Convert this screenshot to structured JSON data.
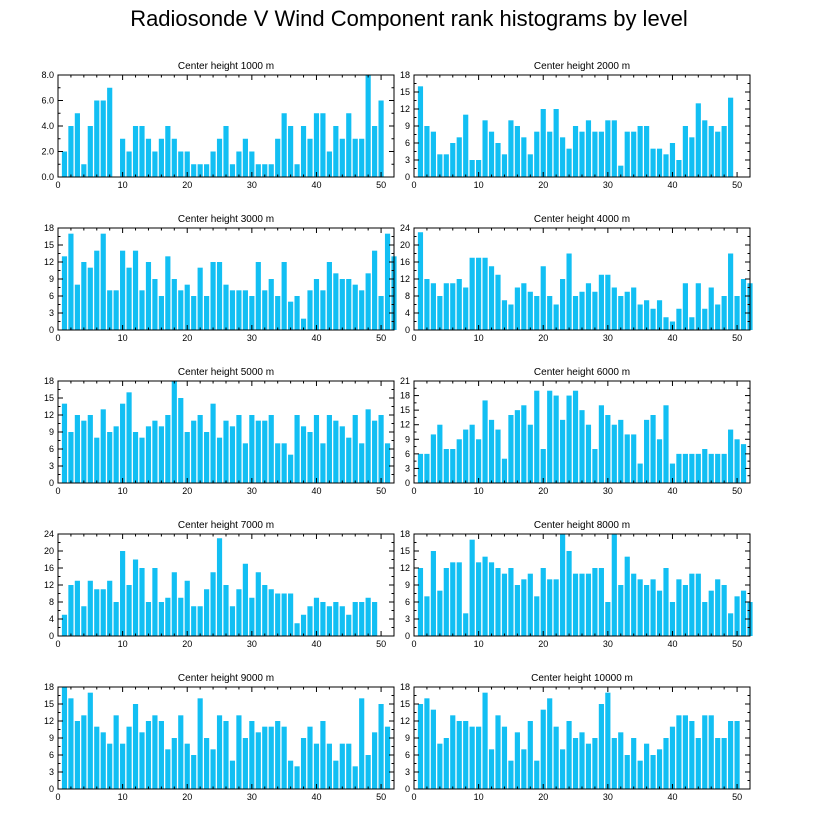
{
  "title": "Radiosonde V Wind Component rank histograms by level",
  "colors": {
    "bar": "#12BFF3",
    "axis": "#000000"
  },
  "chart_data": [
    {
      "type": "bar",
      "title": "Center height 1000 m",
      "xlim": [
        0,
        52
      ],
      "xticks": [
        0,
        10,
        20,
        30,
        40,
        50
      ],
      "ylim": [
        0,
        8
      ],
      "yticks": [
        "0.0",
        "2.0",
        "4.0",
        "6.0",
        "8.0"
      ],
      "ytick_values": [
        0,
        2,
        4,
        6,
        8
      ],
      "values": [
        2,
        4,
        5,
        1,
        4,
        6,
        6,
        7,
        0,
        3,
        2,
        4,
        4,
        3,
        2,
        3,
        4,
        3,
        2,
        2,
        1,
        1,
        1,
        2,
        3,
        4,
        1,
        2,
        3,
        2,
        1,
        1,
        1,
        3,
        5,
        4,
        1,
        4,
        3,
        5,
        5,
        2,
        4,
        3,
        5,
        3,
        3,
        8,
        4,
        6
      ]
    },
    {
      "type": "bar",
      "title": "Center height 2000 m",
      "xlim": [
        0,
        52
      ],
      "xticks": [
        0,
        10,
        20,
        30,
        40,
        50
      ],
      "ylim": [
        0,
        18
      ],
      "yticks": [
        "0",
        "3",
        "6",
        "9",
        "12",
        "15",
        "18"
      ],
      "ytick_values": [
        0,
        3,
        6,
        9,
        12,
        15,
        18
      ],
      "values": [
        16,
        9,
        8,
        4,
        4,
        6,
        7,
        11,
        3,
        3,
        10,
        8,
        6,
        4,
        10,
        9,
        7,
        4,
        8,
        12,
        8,
        12,
        7,
        5,
        9,
        8,
        10,
        8,
        8,
        10,
        10,
        2,
        8,
        8,
        9,
        9,
        5,
        5,
        4,
        6,
        3,
        9,
        7,
        13,
        10,
        9,
        8,
        9,
        14
      ]
    },
    {
      "type": "bar",
      "title": "Center height 3000 m",
      "xlim": [
        0,
        52
      ],
      "xticks": [
        0,
        10,
        20,
        30,
        40,
        50
      ],
      "ylim": [
        0,
        18
      ],
      "yticks": [
        "0",
        "3",
        "6",
        "9",
        "12",
        "15",
        "18"
      ],
      "ytick_values": [
        0,
        3,
        6,
        9,
        12,
        15,
        18
      ],
      "values": [
        13,
        17,
        8,
        12,
        11,
        14,
        17,
        7,
        7,
        14,
        11,
        14,
        7,
        12,
        9,
        6,
        13,
        9,
        7,
        8,
        6,
        11,
        6,
        12,
        12,
        8,
        7,
        7,
        7,
        6,
        12,
        7,
        9,
        6,
        12,
        5,
        6,
        2,
        7,
        9,
        7,
        12,
        10,
        9,
        9,
        8,
        7,
        10,
        14,
        6,
        17,
        13
      ]
    },
    {
      "type": "bar",
      "title": "Center height 4000 m",
      "xlim": [
        0,
        52
      ],
      "xticks": [
        0,
        10,
        20,
        30,
        40,
        50
      ],
      "ylim": [
        0,
        24
      ],
      "yticks": [
        "0",
        "4",
        "8",
        "12",
        "16",
        "20",
        "24"
      ],
      "ytick_values": [
        0,
        4,
        8,
        12,
        16,
        20,
        24
      ],
      "values": [
        23,
        12,
        11,
        8,
        11,
        11,
        12,
        10,
        17,
        17,
        17,
        15,
        13,
        7,
        6,
        10,
        11,
        9,
        8,
        15,
        8,
        6,
        12,
        18,
        8,
        9,
        11,
        9,
        13,
        13,
        10,
        8,
        9,
        10,
        6,
        7,
        5,
        7,
        3,
        2,
        5,
        11,
        3,
        11,
        5,
        10,
        6,
        8,
        18,
        8,
        12,
        11
      ]
    },
    {
      "type": "bar",
      "title": "Center height 5000 m",
      "xlim": [
        0,
        52
      ],
      "xticks": [
        0,
        10,
        20,
        30,
        40,
        50
      ],
      "ylim": [
        0,
        18
      ],
      "yticks": [
        "0",
        "3",
        "6",
        "9",
        "12",
        "15",
        "18"
      ],
      "ytick_values": [
        0,
        3,
        6,
        9,
        12,
        15,
        18
      ],
      "values": [
        14,
        9,
        12,
        11,
        12,
        8,
        13,
        9,
        10,
        14,
        16,
        9,
        8,
        10,
        11,
        10,
        12,
        18,
        15,
        9,
        11,
        12,
        9,
        14,
        8,
        11,
        10,
        12,
        7,
        12,
        11,
        11,
        12,
        7,
        7,
        5,
        12,
        10,
        9,
        12,
        7,
        12,
        11,
        10,
        8,
        12,
        7,
        13,
        11,
        12,
        7
      ]
    },
    {
      "type": "bar",
      "title": "Center height 6000 m",
      "xlim": [
        0,
        52
      ],
      "xticks": [
        0,
        10,
        20,
        30,
        40,
        50
      ],
      "ylim": [
        0,
        21
      ],
      "yticks": [
        "0",
        "3",
        "6",
        "9",
        "12",
        "15",
        "18",
        "21"
      ],
      "ytick_values": [
        0,
        3,
        6,
        9,
        12,
        15,
        18,
        21
      ],
      "values": [
        6,
        6,
        10,
        12,
        7,
        7,
        9,
        11,
        12,
        9,
        17,
        13,
        11,
        5,
        14,
        15,
        16,
        12,
        19,
        7,
        19,
        18,
        13,
        18,
        19,
        15,
        12,
        7,
        16,
        14,
        12,
        13,
        10,
        10,
        4,
        13,
        14,
        9,
        16,
        4,
        6,
        6,
        6,
        6,
        7,
        6,
        6,
        6,
        11,
        9,
        8
      ]
    },
    {
      "type": "bar",
      "title": "Center height 7000 m",
      "xlim": [
        0,
        52
      ],
      "xticks": [
        0,
        10,
        20,
        30,
        40,
        50
      ],
      "ylim": [
        0,
        24
      ],
      "yticks": [
        "0",
        "4",
        "8",
        "12",
        "16",
        "20",
        "24"
      ],
      "ytick_values": [
        0,
        4,
        8,
        12,
        16,
        20,
        24
      ],
      "values": [
        5,
        12,
        13,
        7,
        13,
        11,
        11,
        13,
        8,
        20,
        12,
        18,
        16,
        8,
        16,
        8,
        9,
        15,
        9,
        13,
        7,
        7,
        11,
        15,
        23,
        12,
        7,
        11,
        17,
        9,
        15,
        12,
        11,
        10,
        10,
        10,
        3,
        5,
        7,
        9,
        8,
        7,
        8,
        7,
        5,
        8,
        8,
        9,
        8
      ]
    },
    {
      "type": "bar",
      "title": "Center height 8000 m",
      "xlim": [
        0,
        52
      ],
      "xticks": [
        0,
        10,
        20,
        30,
        40,
        50
      ],
      "ylim": [
        0,
        18
      ],
      "yticks": [
        "0",
        "3",
        "6",
        "9",
        "12",
        "15",
        "18"
      ],
      "ytick_values": [
        0,
        3,
        6,
        9,
        12,
        15,
        18
      ],
      "values": [
        12,
        7,
        15,
        8,
        12,
        13,
        13,
        4,
        17,
        13,
        14,
        13,
        12,
        11,
        12,
        9,
        10,
        11,
        7,
        12,
        10,
        10,
        18,
        15,
        11,
        11,
        11,
        12,
        12,
        6,
        18,
        9,
        14,
        11,
        10,
        9,
        10,
        8,
        12,
        6,
        10,
        9,
        11,
        11,
        6,
        8,
        10,
        9,
        4,
        7,
        8,
        6
      ]
    },
    {
      "type": "bar",
      "title": "Center height 9000 m",
      "xlim": [
        0,
        52
      ],
      "xticks": [
        0,
        10,
        20,
        30,
        40,
        50
      ],
      "ylim": [
        0,
        18
      ],
      "yticks": [
        "0",
        "3",
        "6",
        "9",
        "12",
        "15",
        "18"
      ],
      "ytick_values": [
        0,
        3,
        6,
        9,
        12,
        15,
        18
      ],
      "values": [
        18,
        16,
        12,
        13,
        17,
        11,
        10,
        8,
        13,
        8,
        11,
        15,
        10,
        12,
        13,
        12,
        7,
        9,
        13,
        8,
        6,
        16,
        9,
        7,
        13,
        12,
        5,
        13,
        9,
        12,
        10,
        11,
        11,
        12,
        11,
        5,
        4,
        9,
        11,
        8,
        12,
        8,
        5,
        8,
        8,
        4,
        16,
        6,
        10,
        15,
        11
      ]
    },
    {
      "type": "bar",
      "title": "Center height 10000 m",
      "xlim": [
        0,
        52
      ],
      "xticks": [
        0,
        10,
        20,
        30,
        40,
        50
      ],
      "ylim": [
        0,
        18
      ],
      "yticks": [
        "0",
        "3",
        "6",
        "9",
        "12",
        "15",
        "18"
      ],
      "ytick_values": [
        0,
        3,
        6,
        9,
        12,
        15,
        18
      ],
      "values": [
        15,
        16,
        14,
        8,
        9,
        13,
        12,
        12,
        11,
        11,
        17,
        7,
        13,
        11,
        5,
        10,
        7,
        12,
        5,
        14,
        16,
        11,
        7,
        12,
        9,
        10,
        8,
        9,
        15,
        17,
        9,
        10,
        6,
        9,
        5,
        8,
        6,
        7,
        9,
        11,
        13,
        13,
        12,
        9,
        13,
        13,
        9,
        9,
        12,
        12
      ]
    }
  ]
}
